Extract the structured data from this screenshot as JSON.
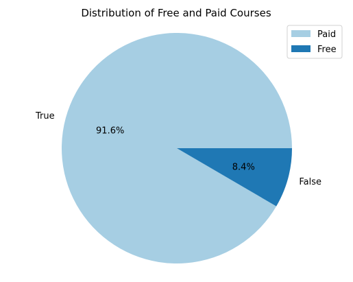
{
  "chart_data": {
    "type": "pie",
    "title": "Distribution of Free and Paid Courses",
    "slices": [
      {
        "label": "True",
        "legend": "Paid",
        "value": 91.6,
        "pct_label": "91.6%",
        "color": "#a6cee3"
      },
      {
        "label": "False",
        "legend": "Free",
        "value": 8.4,
        "pct_label": "8.4%",
        "color": "#1f78b4"
      }
    ],
    "legend_position": "top-right",
    "start_angle_deg": 0,
    "direction": "counterclockwise"
  }
}
